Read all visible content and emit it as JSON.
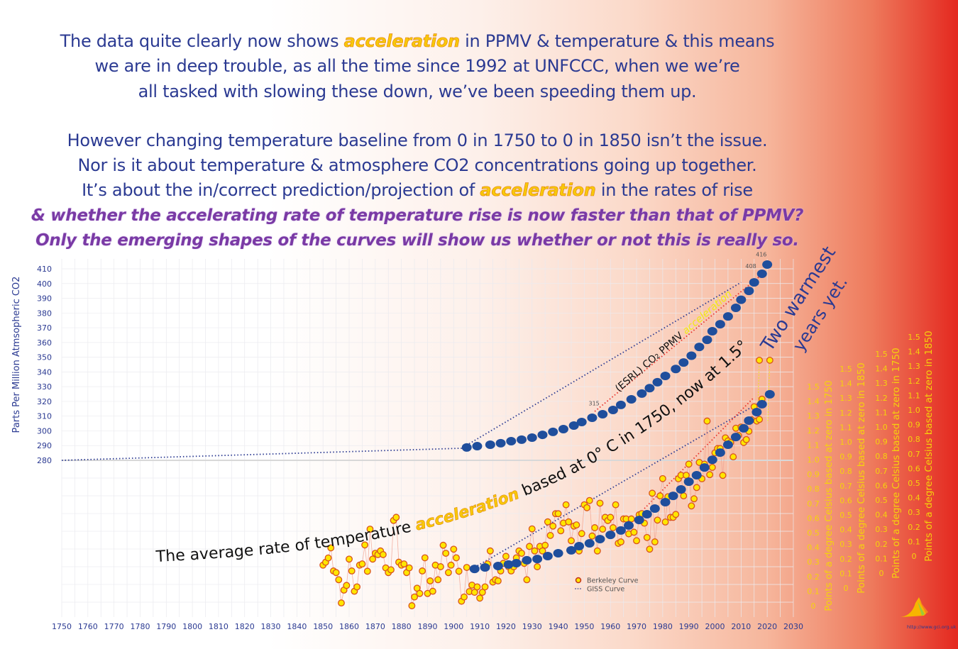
{
  "header": {
    "paragraph1": [
      {
        "pre": "The data quite clearly now shows ",
        "em": "acceleration",
        "post": " in PPMV & temperature & this means"
      },
      {
        "pre": "we are in deep trouble, as all the time since 1992 at UNFCCC, when we we’re"
      },
      {
        "pre": "all tasked with slowing these down, we’ve been speeding them up."
      }
    ],
    "paragraph2": [
      {
        "pre": "However changing temperature baseline from 0 in 1750 to 0 in 1850 isn’t the issue."
      },
      {
        "pre": "Nor is it about temperature & atmosphere CO2 concentrations going up together."
      },
      {
        "pre": "It’s about the in/correct prediction/projection of ",
        "em": "acceleration",
        "post": " in the rates of rise"
      }
    ],
    "bold_lines": [
      "& whether the accelerating rate of temperature rise is now faster than that of PPMV?",
      "Only the emerging shapes of the curves will show us whether or not this is really so."
    ]
  },
  "chart_data": {
    "type": "scatter",
    "grid": true,
    "legend_position": "bottom-center",
    "x_axis": {
      "label": "",
      "range": [
        1750,
        2030
      ],
      "ticks": [
        1750,
        1760,
        1770,
        1780,
        1790,
        1800,
        1810,
        1820,
        1830,
        1840,
        1850,
        1860,
        1870,
        1880,
        1890,
        1900,
        1910,
        1920,
        1930,
        1940,
        1950,
        1960,
        1970,
        1980,
        1990,
        2000,
        2010,
        2020,
        2030
      ]
    },
    "y_axis_left": {
      "label": "Parts Per Million Atmsopheric CO2",
      "range": [
        280,
        410
      ],
      "ticks": [
        410,
        400,
        390,
        380,
        370,
        360,
        350,
        340,
        330,
        320,
        310,
        300,
        290,
        280
      ]
    },
    "y_axes_right": [
      {
        "label": "Points of a degree Celsius based at zero in 1750",
        "ticks": [
          "0",
          "0.1",
          "0.2",
          "0.3",
          "0.4",
          "0.5",
          "0.6",
          "0.7",
          "0.8",
          "0.9",
          "1.0",
          "1.1",
          "1.2",
          "1.3",
          "1.4",
          "1.5"
        ]
      },
      {
        "label": "Points of a degree Celsius based at zero in 1850",
        "ticks": [
          "0",
          "0.1",
          "0.2",
          "0.3",
          "0.4",
          "0.5",
          "0.6",
          "0.7",
          "0.8",
          "0.9",
          "1.0",
          "1.1",
          "1.2",
          "1.3",
          "1.4",
          "1.5"
        ]
      },
      {
        "label": "Points of a degree Celsius based at zero in 1750",
        "ticks": [
          "0",
          "0.1",
          "0.2",
          "0.3",
          "0.4",
          "0.5",
          "0.6",
          "0.7",
          "0.8",
          "0.9",
          "1.0",
          "1.1",
          "1.2",
          "1.3",
          "1.4",
          "1.5"
        ]
      },
      {
        "label": "Points of a degree Celsius based at zero in 1850",
        "ticks": [
          "0",
          "0.1",
          "0.2",
          "0.3",
          "0.4",
          "0.5",
          "0.6",
          "0.7",
          "0.8",
          "0.9",
          "1.0",
          "1.1",
          "1.2",
          "1.3",
          "1.4",
          "1.5"
        ]
      }
    ],
    "co2_series": {
      "axis": "left",
      "color": "#1f4e9c",
      "points": [
        [
          1905,
          288.7
        ],
        [
          1909,
          289.6
        ],
        [
          1914,
          290.6
        ],
        [
          1918,
          291.6
        ],
        [
          1922,
          293
        ],
        [
          1926,
          294
        ],
        [
          1930,
          295.4
        ],
        [
          1934,
          297.3
        ],
        [
          1938,
          299.3
        ],
        [
          1942,
          301.2
        ],
        [
          1946,
          303.6
        ],
        [
          1949,
          306
        ],
        [
          1953,
          308.9
        ],
        [
          1957,
          311.3
        ],
        [
          1961,
          314.2
        ],
        [
          1964,
          317.6
        ],
        [
          1968,
          321.4
        ],
        [
          1972,
          325.3
        ],
        [
          1975,
          329
        ],
        [
          1978,
          333
        ],
        [
          1981,
          337.3
        ],
        [
          1985,
          342
        ],
        [
          1988,
          346.4
        ],
        [
          1991,
          351
        ],
        [
          1994,
          357
        ],
        [
          1997,
          361.8
        ],
        [
          1999,
          367.6
        ],
        [
          2002,
          372.4
        ],
        [
          2005,
          377.7
        ],
        [
          2008,
          383.5
        ],
        [
          2010,
          389
        ],
        [
          2013,
          395
        ],
        [
          2015,
          400.8
        ],
        [
          2018,
          406.6
        ],
        [
          2020,
          412.9
        ]
      ],
      "data_labels": [
        {
          "year": 1956,
          "value": 315,
          "text": "315"
        },
        {
          "year": 2016,
          "value": 408,
          "text": "408"
        },
        {
          "year": 2020,
          "value": 416,
          "text": "416"
        }
      ]
    },
    "giss_series": {
      "name": "GISS Curve",
      "axis": "right-1",
      "color": "#1f4e9c",
      "points": [
        [
          1908,
          0.252
        ],
        [
          1912,
          0.262
        ],
        [
          1917,
          0.272
        ],
        [
          1921,
          0.282
        ],
        [
          1924,
          0.291
        ],
        [
          1928,
          0.311
        ],
        [
          1932,
          0.32
        ],
        [
          1936,
          0.34
        ],
        [
          1940,
          0.359
        ],
        [
          1945,
          0.379
        ],
        [
          1948,
          0.408
        ],
        [
          1952,
          0.427
        ],
        [
          1956,
          0.456
        ],
        [
          1960,
          0.485
        ],
        [
          1964,
          0.515
        ],
        [
          1967,
          0.549
        ],
        [
          1971,
          0.587
        ],
        [
          1974,
          0.626
        ],
        [
          1977,
          0.665
        ],
        [
          1981,
          0.709
        ],
        [
          1984,
          0.752
        ],
        [
          1987,
          0.796
        ],
        [
          1990,
          0.849
        ],
        [
          1993,
          0.893
        ],
        [
          1996,
          0.946
        ],
        [
          1999,
          0.999
        ],
        [
          2002,
          1.048
        ],
        [
          2005,
          1.102
        ],
        [
          2008,
          1.155
        ],
        [
          2011,
          1.214
        ],
        [
          2013,
          1.267
        ],
        [
          2016,
          1.325
        ],
        [
          2018,
          1.379
        ],
        [
          2021,
          1.447
        ]
      ]
    },
    "berkeley_series": {
      "name": "Berkeley Curve",
      "axis": "right-1",
      "fill": "#ffe600",
      "stroke": "#d9531e",
      "start_year": 1850,
      "values": [
        0.278,
        0.298,
        0.327,
        0.396,
        0.238,
        0.227,
        0.178,
        0.019,
        0.107,
        0.139,
        0.319,
        0.238,
        0.099,
        0.129,
        0.278,
        0.286,
        0.416,
        0.236,
        0.524,
        0.319,
        0.359,
        0.35,
        0.375,
        0.35,
        0.259,
        0.227,
        0.246,
        0.584,
        0.605,
        0.298,
        0.278,
        0.286,
        0.227,
        0.259,
        0.0,
        0.06,
        0.12,
        0.084,
        0.238,
        0.328,
        0.084,
        0.17,
        0.099,
        0.278,
        0.178,
        0.267,
        0.414,
        0.359,
        0.227,
        0.278,
        0.387,
        0.328,
        0.236,
        0.031,
        0.06,
        0.262,
        0.097,
        0.141,
        0.092,
        0.129,
        0.052,
        0.092,
        0.129,
        0.286,
        0.375,
        0.162,
        0.178,
        0.17,
        0.238,
        0.29,
        0.338,
        0.267,
        0.238,
        0.267,
        0.328,
        0.375,
        0.359,
        0.29,
        0.178,
        0.406,
        0.526,
        0.375,
        0.267,
        0.406,
        0.375,
        0.414,
        0.574,
        0.481,
        0.545,
        0.63,
        0.63,
        0.513,
        0.566,
        0.691,
        0.574,
        0.445,
        0.545,
        0.553,
        0.375,
        0.494,
        0.691,
        0.671,
        0.72,
        0.477,
        0.534,
        0.375,
        0.702,
        0.524,
        0.605,
        0.583,
        0.605,
        0.534,
        0.691,
        0.427,
        0.437,
        0.594,
        0.594,
        0.492,
        0.594,
        0.503,
        0.445,
        0.623,
        0.631,
        0.565,
        0.467,
        0.387,
        0.77,
        0.437,
        0.586,
        0.752,
        0.87,
        0.573,
        0.746,
        0.605,
        0.605,
        0.625,
        0.869,
        0.893,
        0.752,
        0.893,
        0.969,
        0.683,
        0.732,
        0.809,
        0.981,
        0.869,
        0.969,
        1.264,
        0.897,
        0.947,
        1.047,
        1.076,
        1.076,
        0.892,
        1.149,
        1.128,
        1.117,
        1.019,
        1.215,
        1.165,
        1.223,
        1.117,
        1.137,
        1.194,
        1.273,
        1.362,
        1.264,
        1.275,
        1.414
      ],
      "warmest_points": [
        [
          2017,
          1.68
        ],
        [
          2021,
          1.68
        ]
      ]
    },
    "trend_lines": [
      {
        "axis": "left",
        "color": "#2b3a92",
        "points": [
          [
            1750,
            280
          ],
          [
            1903,
            288.2
          ],
          [
            2010,
            400.8
          ]
        ]
      },
      {
        "axis": "left",
        "color": "#e8302a",
        "points": [
          [
            1954,
            313.2
          ],
          [
            2017,
            404.7
          ]
        ]
      },
      {
        "axis": "right-1",
        "color": "#2b3a92",
        "points": [
          [
            1907,
            0.252
          ],
          [
            2018,
            1.4
          ]
        ]
      },
      {
        "axis": "right-1",
        "color": "#e8302a",
        "points": [
          [
            1973,
            0.665
          ],
          [
            2015,
            1.427
          ]
        ]
      }
    ],
    "annotations": {
      "temperature": {
        "pre": "The average rate of temperature ",
        "em": "acceleration",
        "post": " based at 0° C in 1750, now at 1.5° C"
      },
      "co2": {
        "pre": "(ESRL) CO",
        "sub": "2",
        "mid": " PPMV ",
        "em": "acceleration"
      },
      "warmest": [
        "Two warmest",
        "years yet."
      ]
    },
    "legend": [
      {
        "label": "Berkeley Curve",
        "marker": "circle"
      },
      {
        "label": "GISS Curve",
        "marker": "dashed-line"
      }
    ]
  },
  "footer": {
    "url": "http://www.gci.org.uk",
    "logo": "gci-logo"
  }
}
